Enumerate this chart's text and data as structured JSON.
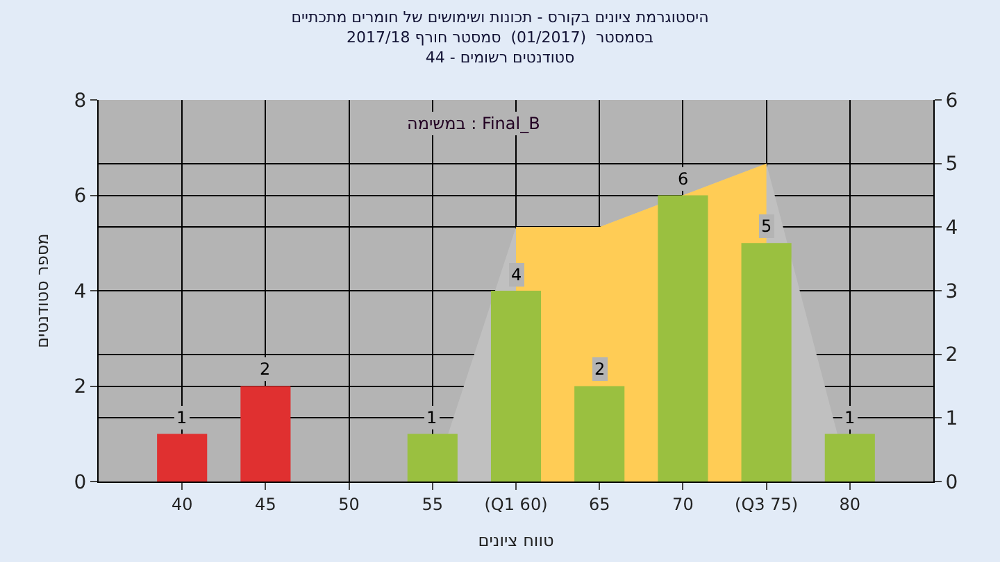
{
  "chart_data": {
    "type": "bar",
    "title": "היסטוגרמת ציונים בקורס - תכונות ושימושים של חומרים מתכתיים\nבסמסטר  (01/2017)  סמסטר חורף 2017/18\nסטודנטים רשומים - 44",
    "xlabel": "טווח ציונים",
    "ylabel": "מספר סטודנטים",
    "annotations": [
      "במשימה : Final_B"
    ],
    "categories": [
      "40",
      "45",
      "50",
      "55",
      "(Q1 60)",
      "65",
      "70",
      "(Q3 75)",
      "80"
    ],
    "series": [
      {
        "type": "area",
        "axis": "y2",
        "color": "#c0c0c0",
        "values": [
          null,
          null,
          null,
          0,
          4,
          4,
          null,
          5,
          0
        ]
      },
      {
        "type": "area",
        "axis": "y2",
        "color": "#ffcc55",
        "values": [
          null,
          null,
          null,
          null,
          4,
          4,
          null,
          5,
          null
        ]
      },
      {
        "colors": [
          "#e03030",
          "#e03030",
          "#9ac040",
          "#9ac040",
          "#9ac040",
          "#9ac040",
          "#9ac040",
          "#9ac040",
          "#9ac040"
        ],
        "values": [
          1,
          2,
          0,
          1,
          4,
          2,
          6,
          5,
          1
        ],
        "value_labels": [
          "1",
          "2",
          null,
          "1",
          "4",
          "2",
          "6",
          "5",
          "1"
        ]
      }
    ],
    "ylim": [
      0,
      8
    ],
    "yticks": [
      0,
      2,
      4,
      6,
      8
    ],
    "y2lim": [
      0,
      6
    ],
    "y2ticks": [
      0,
      1,
      2,
      3,
      4,
      5,
      6
    ],
    "grid": true
  }
}
